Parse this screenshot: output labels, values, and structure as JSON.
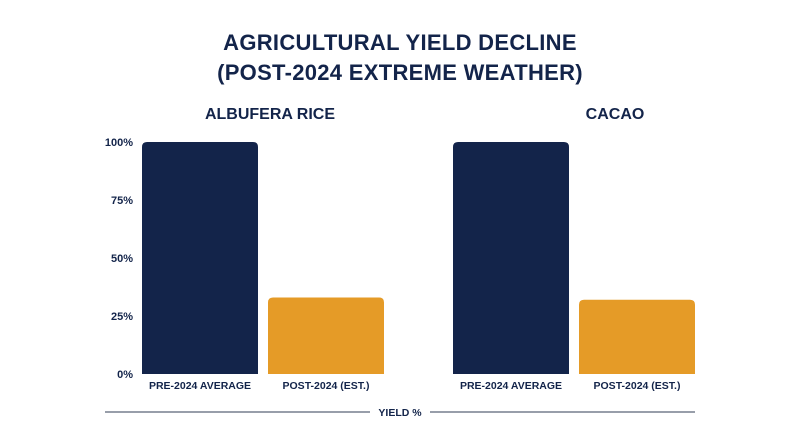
{
  "chart_data": {
    "type": "bar",
    "title_line1": "AGRICULTURAL YIELD DECLINE",
    "title_line2": "(POST-2024 EXTREME WEATHER)",
    "xlabel": "YIELD %",
    "ylim": [
      0,
      100
    ],
    "yticks": [
      "0%",
      "25%",
      "50%",
      "75%",
      "100%"
    ],
    "categories": [
      "PRE-2024 AVERAGE",
      "POST-2024 (EST.)"
    ],
    "colors": {
      "pre": "#13244a",
      "post": "#e59b27",
      "text": "#13244a",
      "axis": "#5a6478"
    },
    "panels": [
      {
        "title": "ALBUFERA RICE",
        "values": [
          100,
          33
        ]
      },
      {
        "title": "CACAO",
        "values": [
          100,
          32
        ]
      }
    ]
  }
}
